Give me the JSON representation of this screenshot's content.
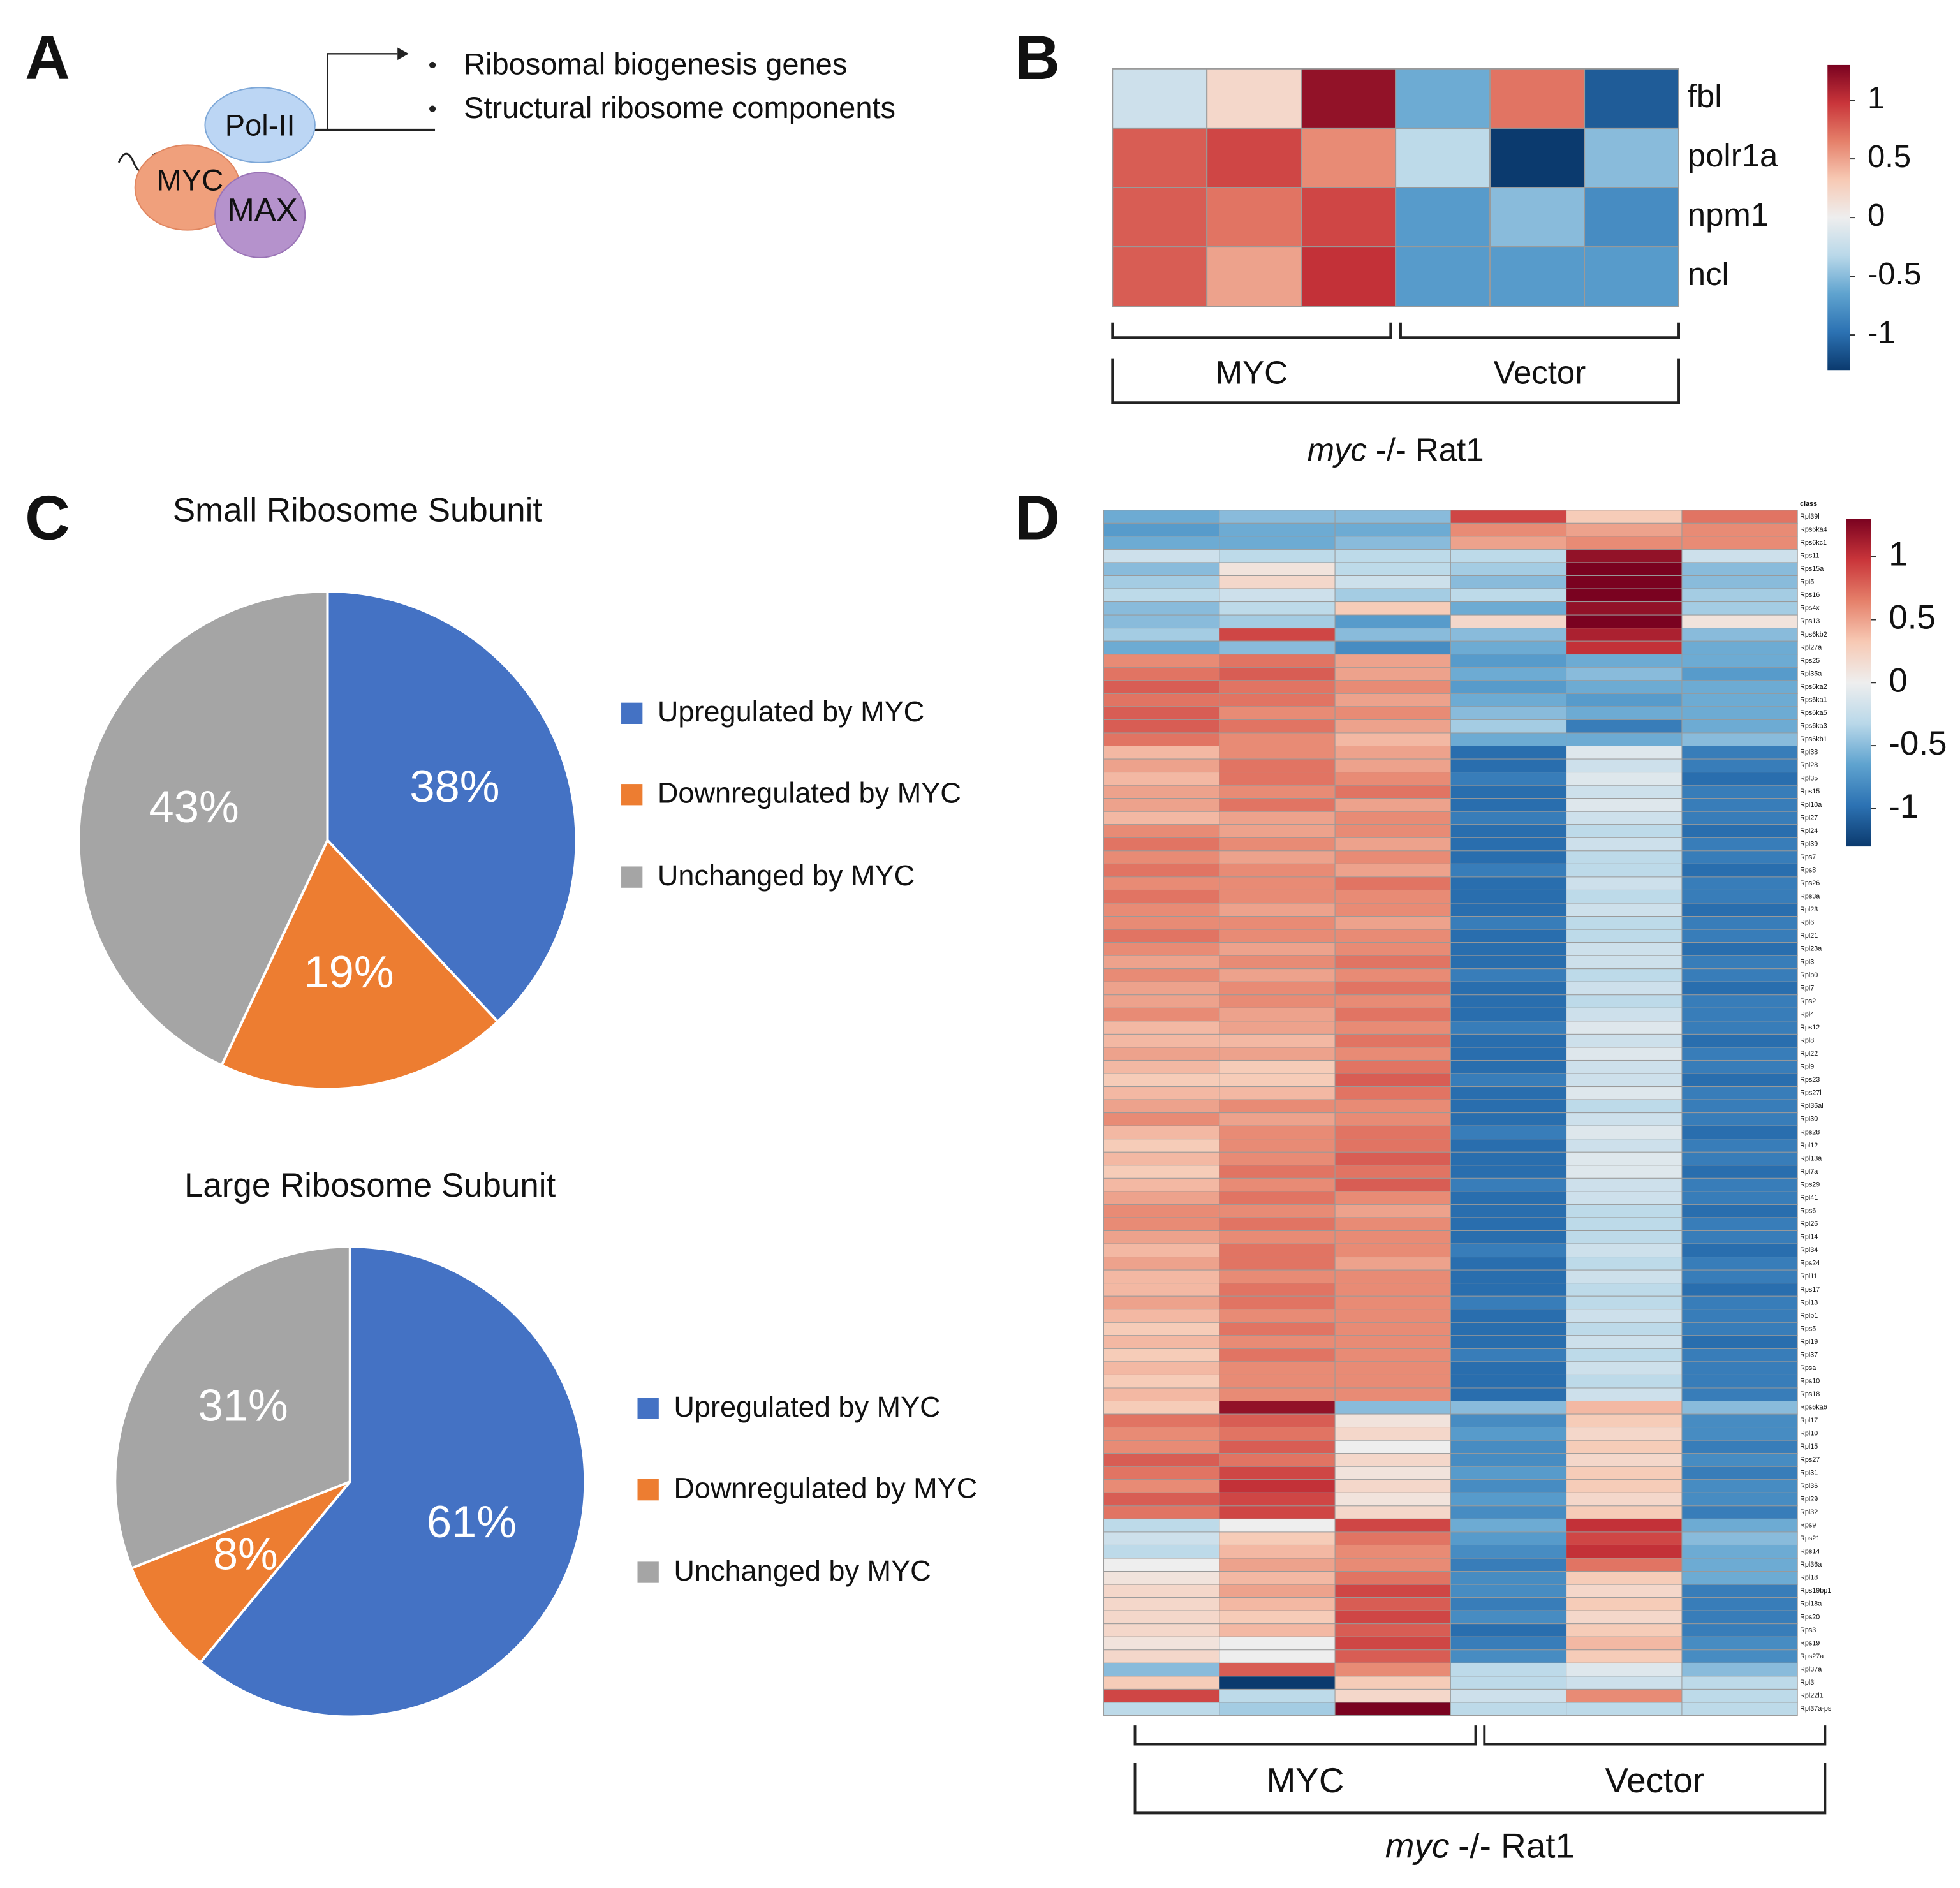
{
  "panel_labels": [
    "A",
    "B",
    "C",
    "D"
  ],
  "diagram": {
    "proteins": [
      "Pol-II",
      "MYC",
      "MAX"
    ],
    "targets": [
      "Ribosomal biogenesis genes",
      "Structural ribosome components"
    ]
  },
  "chart_data": [
    {
      "type": "heatmap",
      "rows": [
        "fbl",
        "polr1a",
        "npm1",
        "ncl"
      ],
      "groups": [
        "MYC",
        "Vector"
      ],
      "values": [
        [
          -0.2,
          0.2,
          1.2,
          -0.6,
          0.7,
          -1.1
        ],
        [
          0.8,
          0.9,
          0.6,
          -0.3,
          -1.3,
          -0.5
        ],
        [
          0.8,
          0.7,
          0.9,
          -0.7,
          -0.5,
          -0.8
        ],
        [
          0.8,
          0.5,
          1.0,
          -0.7,
          -0.7,
          -0.7
        ]
      ],
      "clim": [
        -1.3,
        1.3
      ],
      "colorbar_ticks": [
        1,
        0.5,
        0,
        -0.5,
        -1
      ],
      "colormap": [
        "#0b3a6e",
        "#2c72b3",
        "#5fa3cf",
        "#b9d8e9",
        "#eeeeee",
        "#f7c9b4",
        "#e5806a",
        "#c9353a",
        "#7a0220"
      ],
      "xlabel": {
        "italic": "myc",
        "text": "-/- Rat1"
      }
    },
    {
      "type": "pie",
      "title": "Small Ribosome Subunit",
      "categories": [
        "Upregulated by MYC",
        "Downregulated by MYC",
        "Unchanged by MYC"
      ],
      "values": [
        38,
        19,
        43
      ],
      "value_labels": [
        "38%",
        "19%",
        "43%"
      ],
      "colors": [
        "#4472c4",
        "#ed7d31",
        "#a5a5a5"
      ],
      "legend": "right"
    },
    {
      "type": "pie",
      "title": "Large Ribosome Subunit",
      "categories": [
        "Upregulated by MYC",
        "Downregulated by MYC",
        "Unchanged by MYC"
      ],
      "values": [
        61,
        8,
        31
      ],
      "value_labels": [
        "61%",
        "8%",
        "31%"
      ],
      "colors": [
        "#4472c4",
        "#ed7d31",
        "#a5a5a5"
      ],
      "legend": "right"
    },
    {
      "type": "heatmap",
      "annotation_label": "class",
      "rows": [
        "Rpl39l",
        "Rps6ka4",
        "Rps6kc1",
        "Rps11",
        "Rps15a",
        "Rpl5",
        "Rps16",
        "Rps4x",
        "Rps13",
        "Rps6kb2",
        "Rpl27a",
        "Rps25",
        "Rpl35a",
        "Rps6ka2",
        "Rps6ka1",
        "Rps6ka5",
        "Rps6ka3",
        "Rps6kb1",
        "Rpl38",
        "Rpl28",
        "Rpl35",
        "Rps15",
        "Rpl10a",
        "Rpl27",
        "Rpl24",
        "Rpl39",
        "Rps7",
        "Rps8",
        "Rps26",
        "Rps3a",
        "Rpl23",
        "Rpl6",
        "Rpl21",
        "Rpl23a",
        "Rpl3",
        "Rplp0",
        "Rpl7",
        "Rps2",
        "Rpl4",
        "Rps12",
        "Rpl8",
        "Rpl22",
        "Rpl9",
        "Rps23",
        "Rps27l",
        "Rpl36al",
        "Rpl30",
        "Rps28",
        "Rpl12",
        "Rpl13a",
        "Rpl7a",
        "Rps29",
        "Rpl41",
        "Rps6",
        "Rpl26",
        "Rpl14",
        "Rpl34",
        "Rps24",
        "Rpl11",
        "Rps17",
        "Rpl13",
        "Rplp1",
        "Rps5",
        "Rpl19",
        "Rpl37",
        "Rpsa",
        "Rps10",
        "Rps18",
        "Rps6ka6",
        "Rpl17",
        "Rpl10",
        "Rpl15",
        "Rps27",
        "Rpl31",
        "Rpl36",
        "Rpl29",
        "Rpl32",
        "Rps9",
        "Rps21",
        "Rps14",
        "Rpl36a",
        "Rpl18",
        "Rps19bp1",
        "Rpl18a",
        "Rps20",
        "Rps3",
        "Rps19",
        "Rps27a",
        "Rpl37a",
        "Rpl3l",
        "Rpl22l1",
        "Rpl37a-ps"
      ],
      "groups": [
        "MYC",
        "Vector"
      ],
      "values": [
        [
          -0.6,
          -0.5,
          -0.5,
          0.9,
          0.3,
          0.7
        ],
        [
          -0.7,
          -0.6,
          -0.6,
          0.6,
          0.5,
          0.6
        ],
        [
          -0.6,
          -0.6,
          -0.5,
          0.5,
          0.6,
          0.6
        ],
        [
          -0.2,
          -0.3,
          -0.3,
          -0.3,
          1.2,
          -0.2
        ],
        [
          -0.5,
          0.1,
          -0.3,
          -0.4,
          1.3,
          -0.5
        ],
        [
          -0.4,
          0.2,
          -0.2,
          -0.5,
          1.3,
          -0.5
        ],
        [
          -0.3,
          -0.2,
          -0.4,
          -0.3,
          1.3,
          -0.4
        ],
        [
          -0.5,
          -0.3,
          0.3,
          -0.6,
          1.2,
          -0.4
        ],
        [
          -0.5,
          -0.4,
          -0.7,
          0.2,
          1.3,
          0.1
        ],
        [
          -0.4,
          0.9,
          -0.5,
          -0.5,
          1.1,
          -0.5
        ],
        [
          -0.6,
          -0.5,
          -0.8,
          -0.6,
          1.0,
          -0.6
        ],
        [
          0.6,
          0.7,
          0.5,
          -0.7,
          -0.6,
          -0.6
        ],
        [
          0.7,
          0.8,
          0.5,
          -0.6,
          -0.5,
          -0.7
        ],
        [
          0.8,
          0.7,
          0.6,
          -0.7,
          -0.6,
          -0.6
        ],
        [
          0.7,
          0.7,
          0.5,
          -0.6,
          -0.7,
          -0.6
        ],
        [
          0.8,
          0.6,
          0.6,
          -0.5,
          -0.6,
          -0.6
        ],
        [
          0.8,
          0.7,
          0.5,
          -0.4,
          -0.9,
          -0.6
        ],
        [
          0.7,
          0.6,
          0.4,
          -0.6,
          -0.6,
          -0.5
        ],
        [
          0.4,
          0.6,
          0.5,
          -1.0,
          -0.1,
          -0.9
        ],
        [
          0.5,
          0.7,
          0.5,
          -1.0,
          -0.2,
          -0.9
        ],
        [
          0.4,
          0.7,
          0.6,
          -0.9,
          -0.1,
          -1.0
        ],
        [
          0.5,
          0.6,
          0.7,
          -1.0,
          -0.2,
          -0.9
        ],
        [
          0.5,
          0.7,
          0.5,
          -1.0,
          -0.1,
          -0.9
        ],
        [
          0.4,
          0.5,
          0.6,
          -0.9,
          -0.2,
          -0.9
        ],
        [
          0.6,
          0.5,
          0.6,
          -1.0,
          -0.3,
          -1.0
        ],
        [
          0.7,
          0.6,
          0.5,
          -1.0,
          -0.2,
          -0.9
        ],
        [
          0.6,
          0.5,
          0.6,
          -1.0,
          -0.3,
          -0.9
        ],
        [
          0.7,
          0.6,
          0.5,
          -0.9,
          -0.3,
          -1.0
        ],
        [
          0.6,
          0.6,
          0.7,
          -1.0,
          -0.2,
          -0.9
        ],
        [
          0.7,
          0.6,
          0.6,
          -1.0,
          -0.3,
          -0.9
        ],
        [
          0.6,
          0.5,
          0.6,
          -1.0,
          -0.2,
          -1.0
        ],
        [
          0.6,
          0.6,
          0.5,
          -0.9,
          -0.3,
          -0.9
        ],
        [
          0.7,
          0.6,
          0.6,
          -1.0,
          -0.3,
          -0.9
        ],
        [
          0.6,
          0.5,
          0.6,
          -1.0,
          -0.2,
          -1.0
        ],
        [
          0.5,
          0.6,
          0.7,
          -1.0,
          -0.2,
          -0.9
        ],
        [
          0.6,
          0.5,
          0.6,
          -0.9,
          -0.3,
          -0.9
        ],
        [
          0.5,
          0.6,
          0.7,
          -1.0,
          -0.2,
          -1.0
        ],
        [
          0.5,
          0.6,
          0.6,
          -1.0,
          -0.3,
          -0.9
        ],
        [
          0.6,
          0.5,
          0.7,
          -1.0,
          -0.2,
          -0.9
        ],
        [
          0.4,
          0.5,
          0.6,
          -0.9,
          -0.1,
          -0.9
        ],
        [
          0.4,
          0.4,
          0.7,
          -1.0,
          -0.2,
          -1.0
        ],
        [
          0.5,
          0.5,
          0.6,
          -1.0,
          -0.1,
          -0.9
        ],
        [
          0.4,
          0.3,
          0.7,
          -1.0,
          -0.2,
          -0.9
        ],
        [
          0.3,
          0.3,
          0.8,
          -0.9,
          -0.2,
          -1.0
        ],
        [
          0.4,
          0.4,
          0.7,
          -1.0,
          -0.1,
          -0.9
        ],
        [
          0.5,
          0.6,
          0.6,
          -1.0,
          -0.3,
          -0.9
        ],
        [
          0.6,
          0.5,
          0.6,
          -1.0,
          -0.2,
          -0.9
        ],
        [
          0.4,
          0.6,
          0.7,
          -0.9,
          -0.1,
          -1.0
        ],
        [
          0.3,
          0.6,
          0.7,
          -1.0,
          -0.2,
          -0.9
        ],
        [
          0.4,
          0.6,
          0.8,
          -1.0,
          -0.1,
          -0.9
        ],
        [
          0.3,
          0.7,
          0.7,
          -1.0,
          -0.1,
          -1.0
        ],
        [
          0.4,
          0.6,
          0.8,
          -0.9,
          -0.2,
          -0.9
        ],
        [
          0.5,
          0.7,
          0.6,
          -1.0,
          -0.2,
          -0.9
        ],
        [
          0.6,
          0.6,
          0.5,
          -1.0,
          -0.3,
          -1.0
        ],
        [
          0.6,
          0.7,
          0.6,
          -1.0,
          -0.3,
          -0.9
        ],
        [
          0.5,
          0.6,
          0.6,
          -1.0,
          -0.3,
          -0.9
        ],
        [
          0.4,
          0.7,
          0.6,
          -0.9,
          -0.2,
          -1.0
        ],
        [
          0.5,
          0.7,
          0.5,
          -1.0,
          -0.3,
          -0.9
        ],
        [
          0.4,
          0.6,
          0.6,
          -1.0,
          -0.2,
          -0.9
        ],
        [
          0.4,
          0.7,
          0.6,
          -1.0,
          -0.3,
          -1.0
        ],
        [
          0.5,
          0.7,
          0.6,
          -0.9,
          -0.3,
          -0.9
        ],
        [
          0.4,
          0.6,
          0.6,
          -1.0,
          -0.2,
          -0.9
        ],
        [
          0.3,
          0.7,
          0.6,
          -1.0,
          -0.3,
          -0.9
        ],
        [
          0.4,
          0.6,
          0.6,
          -1.0,
          -0.2,
          -1.0
        ],
        [
          0.3,
          0.7,
          0.6,
          -0.9,
          -0.3,
          -0.9
        ],
        [
          0.4,
          0.6,
          0.6,
          -1.0,
          -0.2,
          -0.9
        ],
        [
          0.3,
          0.6,
          0.6,
          -1.0,
          -0.3,
          -0.9
        ],
        [
          0.4,
          0.6,
          0.6,
          -1.0,
          -0.2,
          -0.9
        ],
        [
          0.3,
          1.2,
          -0.5,
          -0.5,
          0.4,
          -0.5
        ],
        [
          0.7,
          0.8,
          0.1,
          -0.8,
          0.3,
          -0.8
        ],
        [
          0.6,
          0.7,
          0.2,
          -0.7,
          0.2,
          -0.8
        ],
        [
          0.6,
          0.8,
          0.0,
          -0.8,
          0.3,
          -0.9
        ],
        [
          0.8,
          0.7,
          0.2,
          -0.8,
          0.2,
          -0.8
        ],
        [
          0.7,
          0.9,
          0.1,
          -0.7,
          0.3,
          -0.9
        ],
        [
          0.6,
          1.0,
          0.2,
          -0.8,
          0.3,
          -0.8
        ],
        [
          0.8,
          0.9,
          0.1,
          -0.7,
          0.2,
          -0.8
        ],
        [
          0.7,
          0.9,
          0.2,
          -0.8,
          0.3,
          -0.9
        ],
        [
          -0.3,
          0.0,
          0.9,
          -0.6,
          1.0,
          -0.6
        ],
        [
          -0.2,
          0.3,
          0.7,
          -0.7,
          0.9,
          -0.5
        ],
        [
          -0.3,
          0.4,
          0.6,
          -0.8,
          1.0,
          -0.6
        ],
        [
          0.0,
          0.5,
          0.6,
          -0.9,
          0.7,
          -0.6
        ],
        [
          0.1,
          0.4,
          0.7,
          -0.8,
          0.3,
          -0.6
        ],
        [
          0.2,
          0.5,
          0.9,
          -0.8,
          0.2,
          -0.9
        ],
        [
          0.2,
          0.4,
          0.8,
          -0.9,
          0.3,
          -0.9
        ],
        [
          0.2,
          0.3,
          0.9,
          -0.8,
          0.2,
          -0.9
        ],
        [
          0.2,
          0.4,
          0.8,
          -1.0,
          0.3,
          -0.9
        ],
        [
          0.1,
          0.0,
          0.9,
          -0.9,
          0.4,
          -0.8
        ],
        [
          0.2,
          0.0,
          0.8,
          -0.8,
          0.3,
          -0.8
        ],
        [
          -0.5,
          0.8,
          0.6,
          -0.3,
          -0.1,
          -0.5
        ],
        [
          0.3,
          -1.3,
          0.3,
          -0.3,
          -0.2,
          -0.3
        ],
        [
          0.9,
          -0.3,
          0.2,
          -0.2,
          0.6,
          -0.3
        ],
        [
          -0.3,
          -0.4,
          1.3,
          -0.3,
          -0.3,
          -0.3
        ]
      ],
      "clim": [
        -1.3,
        1.3
      ],
      "colorbar_ticks": [
        1,
        0.5,
        0,
        -0.5,
        -1
      ],
      "colormap": [
        "#0b3a6e",
        "#2c72b3",
        "#5fa3cf",
        "#b9d8e9",
        "#eeeeee",
        "#f7c9b4",
        "#e5806a",
        "#c9353a",
        "#7a0220"
      ],
      "xlabel": {
        "italic": "myc",
        "text": "-/- Rat1"
      }
    }
  ]
}
